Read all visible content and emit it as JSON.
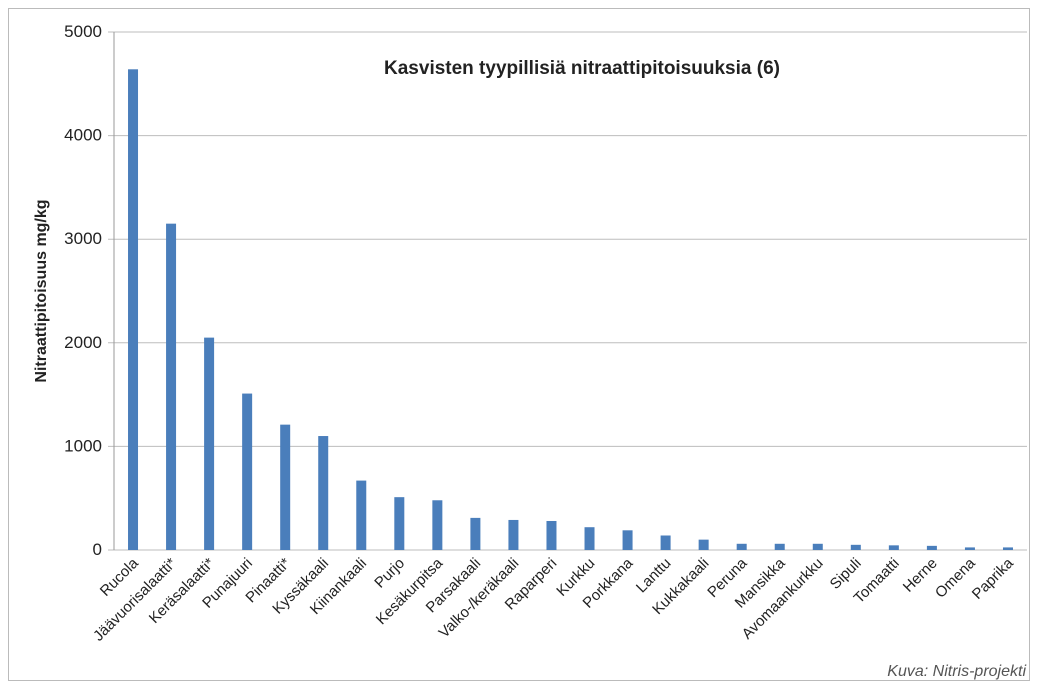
{
  "chart_data": {
    "type": "bar",
    "title": "Kasvisten tyypillisiä nitraattipitoisuuksia (6)",
    "y_label": "Nitraattipitoisuus mg/kg",
    "credit": "Kuva: Nitris-projekti",
    "categories": [
      "Rucola",
      "Jäävuorisalaatti*",
      "Keräsalaatti*",
      "Punajuuri",
      "Pinaatti*",
      "Kyssäkaali",
      "Kiinankaali",
      "Purjo",
      "Kesäkurpitsa",
      "Parsakaali",
      "Valko-/keräkaali",
      "Raparperi",
      "Kurkku",
      "Porkkana",
      "Lanttu",
      "Kukkakaali",
      "Peruna",
      "Mansikka",
      "Avomaankurkku",
      "Sipuli",
      "Tomaatti",
      "Herne",
      "Omena",
      "Paprika"
    ],
    "values": [
      4640,
      3150,
      2050,
      1510,
      1210,
      1100,
      670,
      510,
      480,
      310,
      290,
      280,
      220,
      190,
      140,
      100,
      60,
      60,
      60,
      50,
      45,
      40,
      25,
      25
    ],
    "color": "#4a7ebb",
    "ylim": [
      0,
      5000
    ],
    "yticks": [
      0,
      1000,
      2000,
      3000,
      4000,
      5000
    ],
    "grid": true
  }
}
